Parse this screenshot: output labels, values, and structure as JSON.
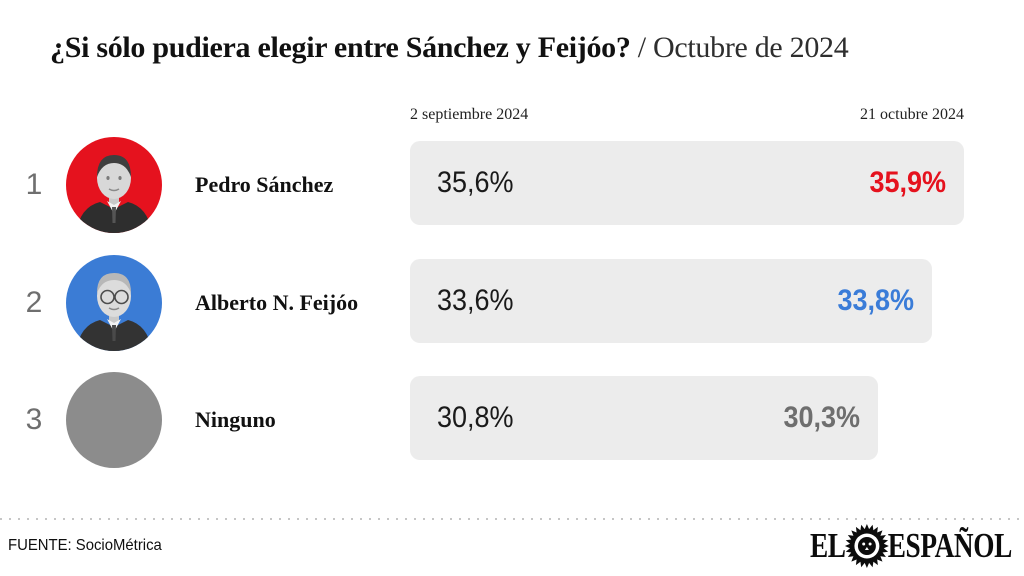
{
  "title": {
    "question": "¿Si sólo pudiera elegir entre Sánchez y Feijóo?",
    "period": " / Octubre de 2024"
  },
  "columns": {
    "date_previous": "2 septiembre 2024",
    "date_current": "21 octubre 2024"
  },
  "chart_data": {
    "type": "bar",
    "title": "¿Si sólo pudiera elegir entre Sánchez y Feijóo? / Octubre de 2024",
    "columns": [
      "2 septiembre 2024",
      "21 octubre 2024"
    ],
    "unit": "%",
    "decimal_style": "comma",
    "max_value": 35.9,
    "bar_track_color": "#ececec",
    "neutral_value_color": "#1a1a1a",
    "rows": [
      {
        "rank": "1",
        "name": "Pedro Sánchez",
        "value_sep": 35.6,
        "value_oct": 35.9,
        "value_sep_label": "35,6%",
        "value_oct_label": "35,9%",
        "avatar_color": "#e5121e",
        "value_color": "#e5121e",
        "avatar": "portrait-sanchez"
      },
      {
        "rank": "2",
        "name": "Alberto N. Feijóo",
        "value_sep": 33.6,
        "value_oct": 33.8,
        "value_sep_label": "33,6%",
        "value_oct_label": "33,8%",
        "avatar_color": "#3b7cd5",
        "value_color": "#3a7cd8",
        "avatar": "portrait-feijoo"
      },
      {
        "rank": "3",
        "name": "Ninguno",
        "value_sep": 30.8,
        "value_oct": 30.3,
        "value_sep_label": "30,8%",
        "value_oct_label": "30,3%",
        "avatar_color": "#8c8c8c",
        "value_color": "#6e6e6e",
        "avatar": "plain-circle"
      }
    ]
  },
  "footer": {
    "source": "FUENTE: SocioMétrica",
    "brand": {
      "el": "EL",
      "espanol": "ESPAÑOL",
      "icon": "lion-icon"
    }
  }
}
